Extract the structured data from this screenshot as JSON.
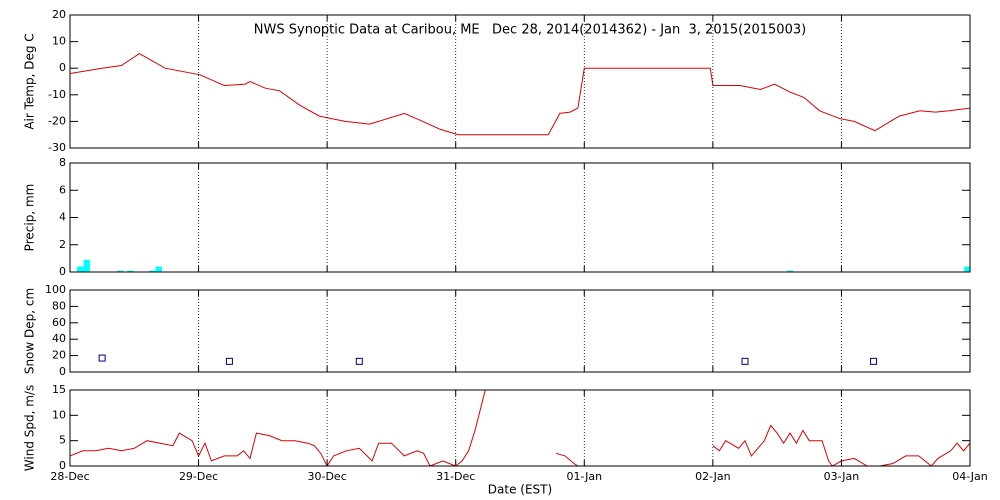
{
  "chart_data": [
    {
      "type": "line",
      "title": "NWS Synoptic Data at Caribou, ME   Dec 28, 2014(2014362) - Jan  3, 2015(2015003)",
      "ylabel": "Air Temp, Deg C",
      "color": "#dd0000",
      "xlim": [
        0,
        7
      ],
      "ylim": [
        -30,
        20
      ],
      "yticks": [
        -30,
        -20,
        -10,
        0,
        10,
        20
      ],
      "x": [
        0,
        0.25,
        0.4,
        0.54,
        0.74,
        1.01,
        1.2,
        1.36,
        1.4,
        1.52,
        1.63,
        1.79,
        1.94,
        2.14,
        2.33,
        2.4,
        2.6,
        2.72,
        2.88,
        3.02,
        3.72,
        3.81,
        3.89,
        3.95,
        4.0,
        4.98,
        5.0,
        5.21,
        5.37,
        5.48,
        5.6,
        5.71,
        5.83,
        5.99,
        6.1,
        6.26,
        6.45,
        6.61,
        6.73,
        6.84,
        7.0
      ],
      "values": [
        -2,
        0,
        1,
        5.5,
        0,
        -2.5,
        -6.5,
        -6,
        -5,
        -7.5,
        -8.5,
        -14,
        -18,
        -20,
        -21,
        -20,
        -17,
        -19.5,
        -23,
        -25,
        -25,
        -17,
        -16.5,
        -15,
        0,
        0,
        -6.5,
        -6.5,
        -8,
        -6,
        -9,
        -11,
        -16,
        -19,
        -20,
        -23.5,
        -18,
        -16,
        -16.5,
        -16,
        -15
      ]
    },
    {
      "type": "bar",
      "ylabel": "Precip, mm",
      "color": "#00ffff",
      "xlim": [
        0,
        7
      ],
      "ylim": [
        0,
        8
      ],
      "yticks": [
        0,
        2,
        4,
        6,
        8
      ],
      "x": [
        0.08,
        0.13,
        0.39,
        0.47,
        0.64,
        0.69,
        5.6,
        6.98
      ],
      "values": [
        0.4,
        0.9,
        0.1,
        0.1,
        0.1,
        0.4,
        0.1,
        0.4
      ]
    },
    {
      "type": "scatter",
      "ylabel": "Snow Dep, cm",
      "color": "#000080",
      "xlim": [
        0,
        7
      ],
      "ylim": [
        0,
        100
      ],
      "yticks": [
        0,
        20,
        40,
        60,
        80,
        100
      ],
      "x": [
        0.25,
        1.24,
        2.25,
        5.25,
        6.25
      ],
      "values": [
        17,
        13,
        13,
        13,
        13
      ]
    },
    {
      "type": "line",
      "ylabel": "Wind Spd, m/s",
      "color": "#dd0000",
      "xlabel": "Date (EST)",
      "xlim": [
        0,
        7
      ],
      "ylim": [
        0,
        15
      ],
      "yticks": [
        0,
        5,
        10,
        15
      ],
      "xticks": [
        {
          "value": 0,
          "label": "28-Dec"
        },
        {
          "value": 1,
          "label": "29-Dec"
        },
        {
          "value": 2,
          "label": "30-Dec"
        },
        {
          "value": 3,
          "label": "31-Dec"
        },
        {
          "value": 4,
          "label": "01-Jan"
        },
        {
          "value": 5,
          "label": "02-Jan"
        },
        {
          "value": 6,
          "label": "03-Jan"
        },
        {
          "value": 7,
          "label": "04-Jan"
        }
      ],
      "x": [
        0,
        0.1,
        0.2,
        0.3,
        0.4,
        0.5,
        0.6,
        0.7,
        0.8,
        0.85,
        0.95,
        1.0,
        1.05,
        1.1,
        1.2,
        1.3,
        1.35,
        1.4,
        1.45,
        1.55,
        1.65,
        1.75,
        1.85,
        1.9,
        1.95,
        2.0,
        2.05,
        2.15,
        2.25,
        2.35,
        2.4,
        2.5,
        2.6,
        2.7,
        2.75,
        2.8,
        2.9,
        2.95,
        3.0,
        3.05,
        3.1,
        3.15,
        3.2,
        3.23,
        3.5,
        3.78,
        3.85,
        3.92,
        3.95,
        4.5,
        5.0,
        5.05,
        5.1,
        5.2,
        5.25,
        5.3,
        5.4,
        5.45,
        5.5,
        5.55,
        5.6,
        5.65,
        5.7,
        5.75,
        5.85,
        5.9,
        5.93,
        6.0,
        6.1,
        6.2,
        6.3,
        6.4,
        6.5,
        6.6,
        6.7,
        6.75,
        6.85,
        6.9,
        6.95,
        7.0
      ],
      "values": [
        2,
        3,
        3,
        3.5,
        3,
        3.5,
        5,
        4.5,
        4,
        6.5,
        5,
        2,
        4.5,
        1,
        2,
        2,
        3,
        1.5,
        6.5,
        6,
        5,
        5,
        4.5,
        4,
        2.5,
        0,
        2,
        3,
        3.5,
        1,
        4.5,
        4.5,
        2,
        3,
        2.5,
        0,
        1,
        0.5,
        0,
        1,
        3,
        7,
        12,
        15,
        null,
        2.5,
        2,
        0.5,
        0,
        null,
        4,
        3,
        5,
        3.5,
        5,
        2,
        5,
        8,
        6.5,
        4.5,
        6.5,
        4.5,
        7,
        5,
        5,
        1,
        0,
        1,
        1.5,
        0,
        0,
        0.5,
        2,
        2,
        0,
        1.5,
        3,
        4.5,
        3,
        4.5
      ]
    }
  ]
}
